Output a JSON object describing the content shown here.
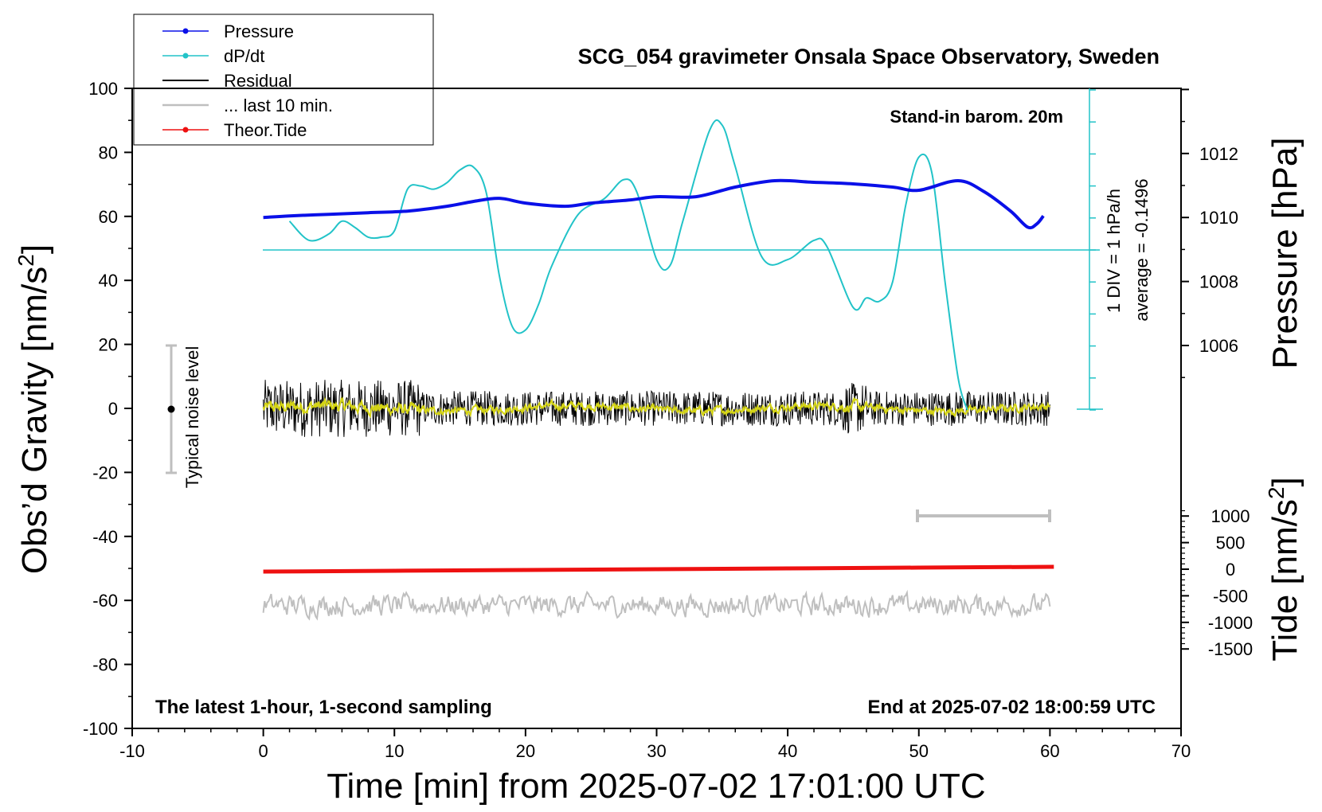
{
  "chart_data": {
    "type": "line",
    "title": "SCG_054 gravimeter Onsala Space Observatory, Sweden",
    "xlabel": "Time [min] from 2025-07-02 17:01:00 UTC",
    "ylabel": "Obs’d Gravity [nm/s²]",
    "ylabel_main": "Obs’d Gravity [nm/s",
    "ylabel_sup": "2",
    "ylabel_tail": "]",
    "y2label": "Pressure [hPa]",
    "y3label_main": "Tide [nm/s",
    "y3label_sup": "2",
    "y3label_tail": "]",
    "xlim": [
      -10,
      70
    ],
    "ylim": [
      -100,
      100
    ],
    "pressure_lim": [
      1004,
      1014
    ],
    "tide_lim": [
      -1500,
      1500
    ],
    "x_ticks": [
      "-10",
      "0",
      "10",
      "20",
      "30",
      "40",
      "50",
      "60",
      "70"
    ],
    "y_ticks": [
      "100",
      "80",
      "60",
      "40",
      "20",
      "0",
      "-20",
      "-40",
      "-60",
      "-80",
      "-100"
    ],
    "pressure_ticks": [
      "1012",
      "1010",
      "1008",
      "1006"
    ],
    "tide_ticks": [
      "1000",
      "500",
      "0",
      "-500",
      "-1000",
      "-1500"
    ],
    "annotations": {
      "barometer": "Stand-in barom. 20m",
      "div": "1 DIV = 1 hPa/h",
      "average": "average = -0.1496",
      "noise": "Typical noise level",
      "bottom_left": "The latest 1-hour, 1-second sampling",
      "bottom_right": "End at 2025-07-02 18:00:59 UTC"
    },
    "legend": {
      "placement": "top-left",
      "entries": [
        "Pressure",
        "dP/dt",
        "Residual",
        "... last 10 min.",
        "Theor.Tide"
      ]
    },
    "colors": {
      "pressure": "#0a10e8",
      "dpdt": "#22c3c8",
      "residual": "#000000",
      "last10": "#d4d414",
      "tide": "#ee1111",
      "lower_trace": "#bfbfbf"
    },
    "series": [
      {
        "name": "Pressure",
        "unit": "hPa",
        "x": [
          0,
          2,
          5,
          8,
          11,
          14,
          16,
          18,
          20,
          23,
          25,
          28,
          30,
          33,
          36,
          39,
          42,
          45,
          48,
          50,
          53,
          55,
          57,
          58.3,
          59,
          59.5
        ],
        "values": [
          1010.0,
          1010.05,
          1010.1,
          1010.15,
          1010.2,
          1010.35,
          1010.5,
          1010.6,
          1010.45,
          1010.35,
          1010.45,
          1010.55,
          1010.65,
          1010.65,
          1010.95,
          1011.15,
          1011.1,
          1011.05,
          1010.95,
          1010.85,
          1011.15,
          1010.8,
          1010.2,
          1009.7,
          1009.8,
          1010.05
        ]
      },
      {
        "name": "dP/dt",
        "unit": "hPa/h",
        "x": [
          2,
          3.5,
          5,
          6,
          7,
          8,
          9,
          10,
          11,
          12,
          13,
          14,
          15,
          16,
          17,
          18,
          19,
          20,
          21,
          22,
          24,
          26,
          27.5,
          28.5,
          30,
          31,
          32,
          34,
          35,
          36,
          38,
          40,
          42,
          43,
          45,
          46,
          47,
          48,
          49,
          50,
          51,
          52,
          53,
          53.7
        ],
        "values": [
          0.9,
          0.3,
          0.5,
          0.9,
          0.7,
          0.4,
          0.4,
          0.6,
          1.9,
          2.0,
          1.9,
          2.1,
          2.5,
          2.6,
          1.8,
          -0.8,
          -2.4,
          -2.5,
          -1.7,
          -0.5,
          1.1,
          1.6,
          2.2,
          1.8,
          -0.3,
          -0.5,
          0.9,
          3.7,
          3.9,
          2.6,
          -0.2,
          -0.3,
          0.3,
          0.1,
          -1.8,
          -1.5,
          -1.6,
          -1.0,
          1.4,
          2.9,
          2.4,
          -1.0,
          -4.0,
          -5.0
        ]
      },
      {
        "name": "Theor.Tide",
        "unit": "nm/s2",
        "x": [
          0,
          10,
          20,
          30,
          40,
          50,
          60.3
        ],
        "values": [
          -45,
          -30,
          -15,
          0,
          15,
          30,
          45
        ]
      }
    ]
  }
}
